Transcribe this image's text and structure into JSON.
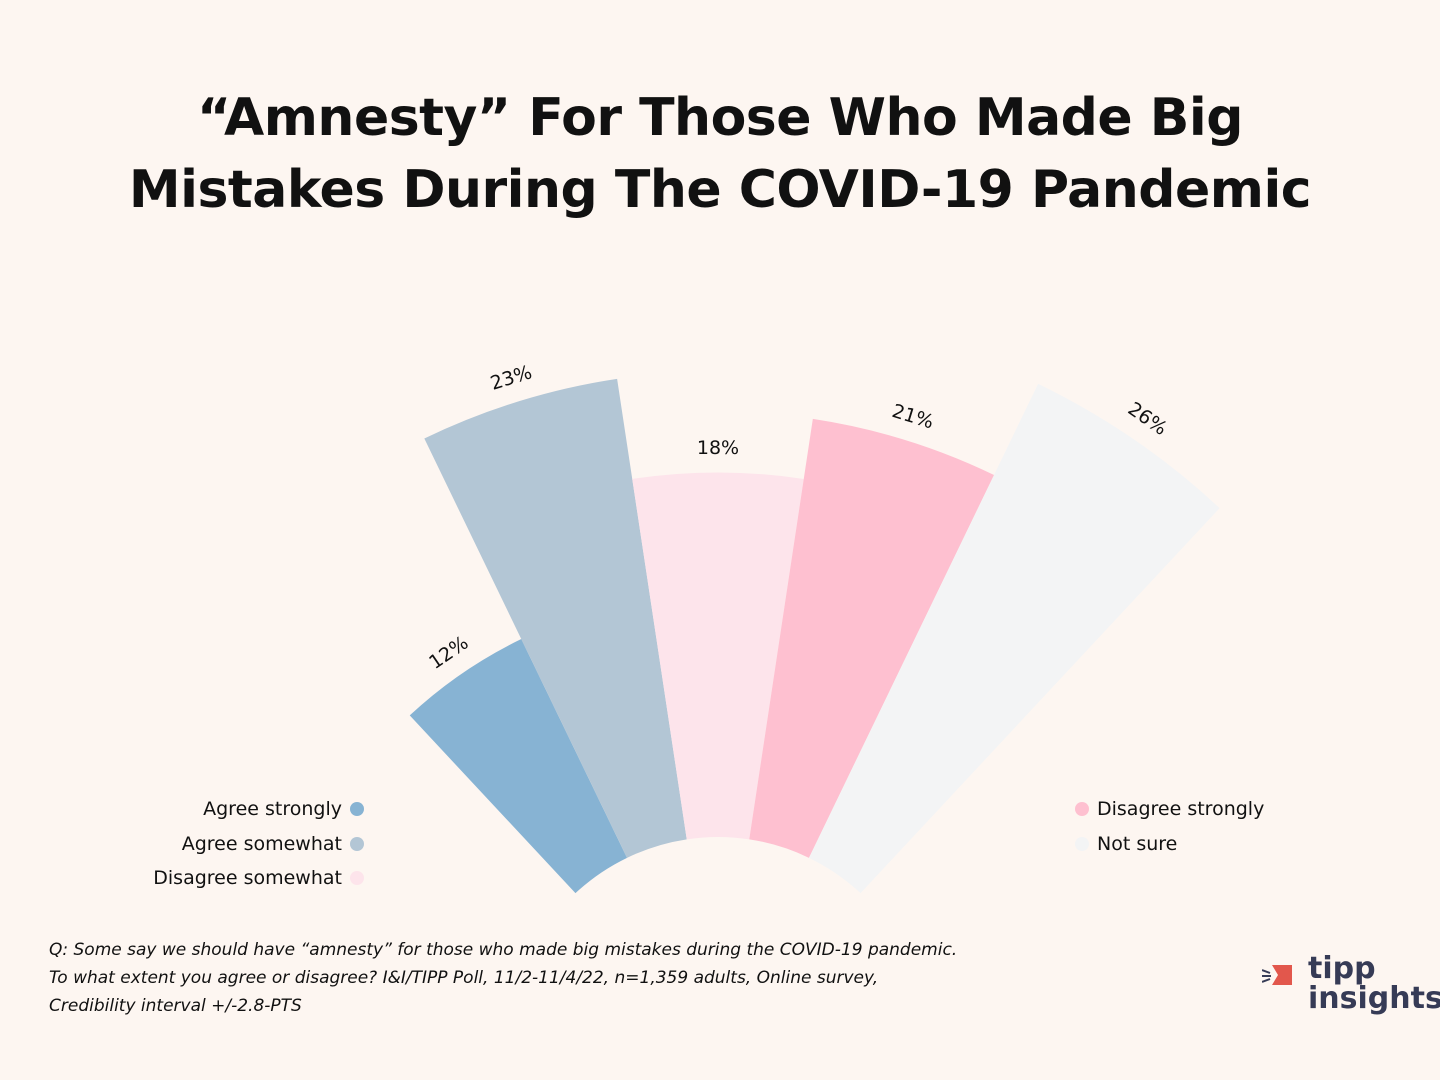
{
  "title_line1": "“Amnesty” For Those Who Made Big",
  "title_line2": "Mistakes During The COVID-19 Pandemic",
  "chart_data": {
    "type": "polar-bar",
    "title": "“Amnesty” For Those Who Made Big Mistakes During The COVID-19 Pandemic",
    "categories": [
      "Agree strongly",
      "Agree somewhat",
      "Disagree somewhat",
      "Disagree strongly",
      "Not sure"
    ],
    "values": [
      12,
      23,
      18,
      21,
      26
    ],
    "data_labels": [
      "12%",
      "23%",
      "18%",
      "21%",
      "26%"
    ],
    "colors": [
      "#87b3d3",
      "#b3c6d5",
      "#fde4eb",
      "#fec0d0",
      "#f3f4f5"
    ],
    "legend": "split bottom-left / bottom-right"
  },
  "legend": {
    "left": [
      {
        "label": "Agree strongly",
        "color": "#87b3d3"
      },
      {
        "label": "Agree somewhat",
        "color": "#b3c6d5"
      },
      {
        "label": "Disagree somewhat",
        "color": "#fde4eb"
      }
    ],
    "right": [
      {
        "label": "Disagree strongly",
        "color": "#fec0d0"
      },
      {
        "label": "Not sure",
        "color": "#f3f4f5"
      }
    ]
  },
  "footer": {
    "line1": "Q: Some say we should have “amnesty” for those who made big mistakes during the COVID-19 pandemic.",
    "line2": "To what extent you agree or disagree? I&I/TIPP Poll, 11/2-11/4/22, n=1,359 adults, Online survey,",
    "line3": "Credibility interval +/-2.8-PTS"
  },
  "logo": {
    "line1": "tipp",
    "line2": "insights"
  }
}
